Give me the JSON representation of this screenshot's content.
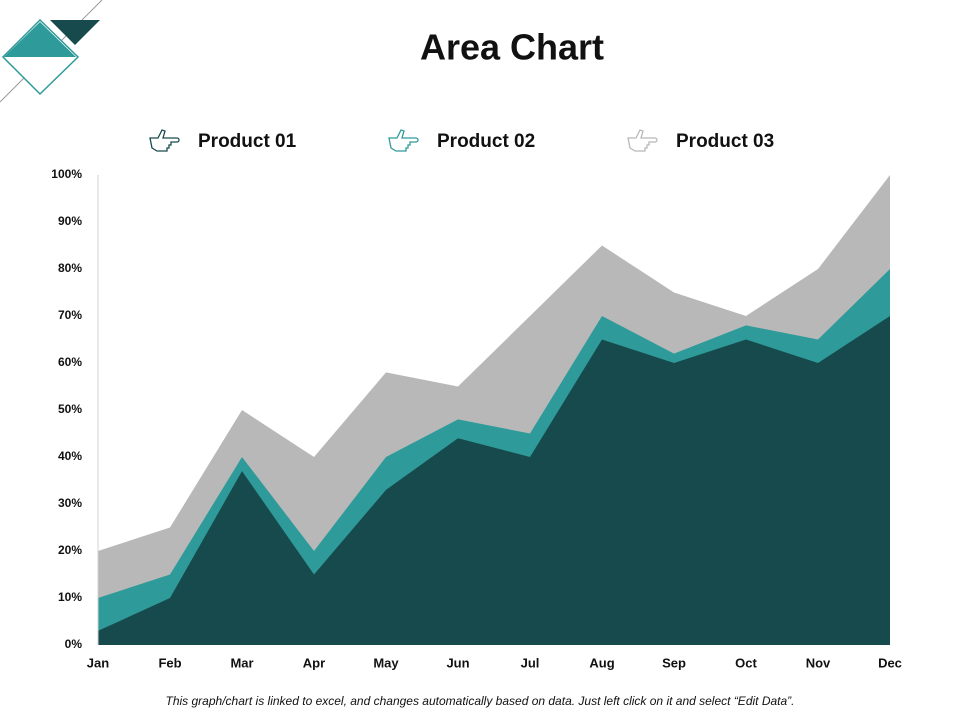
{
  "chart_data": {
    "type": "area",
    "title": "Area Chart",
    "categories": [
      "Jan",
      "Feb",
      "Mar",
      "Apr",
      "May",
      "Jun",
      "Jul",
      "Aug",
      "Sep",
      "Oct",
      "Nov",
      "Dec"
    ],
    "series": [
      {
        "name": "Product 01",
        "color": "#174a4c",
        "values": [
          3,
          10,
          37,
          15,
          33,
          44,
          40,
          65,
          60,
          65,
          60,
          70
        ]
      },
      {
        "name": "Product 02",
        "color": "#2e9a9a",
        "values": [
          10,
          15,
          40,
          20,
          40,
          48,
          45,
          70,
          62,
          68,
          65,
          80
        ]
      },
      {
        "name": "Product 03",
        "color": "#b8b8b8",
        "values": [
          20,
          25,
          50,
          40,
          58,
          55,
          70,
          85,
          75,
          70,
          80,
          100
        ]
      }
    ],
    "ylim": [
      0,
      100
    ],
    "yticks": [
      {
        "value": 0,
        "label": "0%"
      },
      {
        "value": 10,
        "label": "10%"
      },
      {
        "value": 20,
        "label": "20%"
      },
      {
        "value": 30,
        "label": "30%"
      },
      {
        "value": 40,
        "label": "40%"
      },
      {
        "value": 50,
        "label": "50%"
      },
      {
        "value": 60,
        "label": "60%"
      },
      {
        "value": 70,
        "label": "70%"
      },
      {
        "value": 80,
        "label": "80%"
      },
      {
        "value": 90,
        "label": "90%"
      },
      {
        "value": 100,
        "label": "100%"
      }
    ],
    "grid": false,
    "legend": "top",
    "footnote": "This graph/chart is linked to excel, and changes automatically based on data. Just left click on it and select “Edit Data”."
  }
}
